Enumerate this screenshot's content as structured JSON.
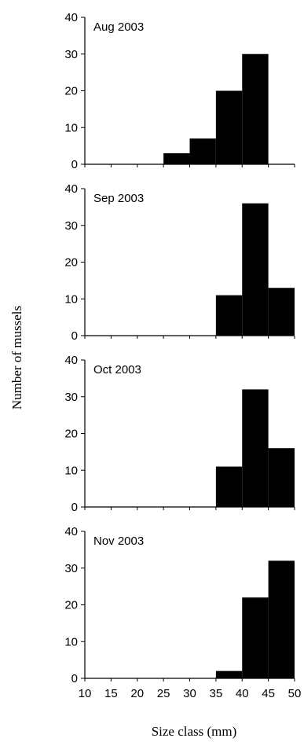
{
  "chart_data": {
    "type": "bar",
    "xlabel": "Size class (mm)",
    "ylabel": "Number of mussels",
    "x_ticks": [
      10,
      15,
      20,
      25,
      30,
      35,
      40,
      45,
      50
    ],
    "x_range": [
      10,
      50
    ],
    "y_ticks": [
      0,
      10,
      20,
      30,
      40
    ],
    "ylim": [
      0,
      40
    ],
    "bin_width": 5,
    "bin_starts": [
      25,
      30,
      35,
      40,
      45
    ],
    "panels": [
      {
        "title": "Aug 2003",
        "values": [
          3,
          7,
          20,
          30,
          0
        ]
      },
      {
        "title": "Sep 2003",
        "values": [
          0,
          0,
          11,
          36,
          13
        ]
      },
      {
        "title": "Oct 2003",
        "values": [
          0,
          0,
          11,
          32,
          16
        ]
      },
      {
        "title": "Nov 2003",
        "values": [
          0,
          0,
          2,
          22,
          32
        ]
      }
    ],
    "grid": false,
    "colors": {
      "bar": "#000000",
      "axis": "#000000"
    }
  }
}
